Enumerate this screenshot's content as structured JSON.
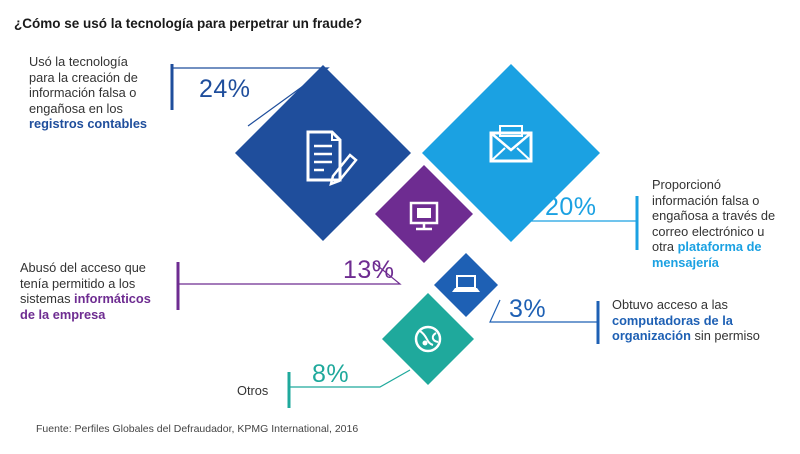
{
  "title": "¿Cómo se usó la tecnología para perpetrar un fraude?",
  "source": "Fuente: Perfiles Globales del Defraudador, KPMG International, 2016",
  "colors": {
    "dark_blue": "#1F4E9C",
    "light_blue": "#1BA1E2",
    "purple": "#6E2C91",
    "mid_blue": "#1E60B4",
    "teal": "#1FA99C"
  },
  "chart_data": {
    "type": "diamond-infographic",
    "unit": "%",
    "items": [
      {
        "key": "registros",
        "value": 24,
        "value_label": "24%",
        "text_lines": [
          "Usó la tecnología",
          "para la creación de",
          "información falsa o",
          "engañosa en los"
        ],
        "bold_text": "registros contables",
        "icon": "document-pen-icon",
        "color": "#1F4E9C"
      },
      {
        "key": "mensajeria",
        "value": 20,
        "value_label": "20%",
        "text_lines": [
          "Proporcionó",
          "información falsa o",
          "engañosa a través de",
          "correo electrónico u"
        ],
        "last_line_plain": "otra ",
        "last_line_bold": "plataforma de",
        "bold_line_2": "mensajería",
        "icon": "envelope-icon",
        "color": "#1BA1E2"
      },
      {
        "key": "sistemas",
        "value": 13,
        "value_label": "13%",
        "text_lines": [
          "Abusó del acceso que",
          "tenía permitido a los"
        ],
        "line3_plain": "sistemas ",
        "line3_bold": "informáticos",
        "bold_line_2": "de la empresa",
        "icon": "monitor-icon",
        "color": "#6E2C91"
      },
      {
        "key": "computadoras",
        "value": 3,
        "value_label": "3%",
        "text_lines": [
          "Obtuvo acceso a las"
        ],
        "bold_text": "computadoras de la",
        "line3_bold": "organización",
        "line3_plain": " sin permiso",
        "icon": "laptop-icon",
        "color": "#1E60B4"
      },
      {
        "key": "otros",
        "value": 8,
        "value_label": "8%",
        "text_lines": [
          "Otros"
        ],
        "icon": "globe-icon",
        "color": "#1FA99C"
      }
    ]
  }
}
